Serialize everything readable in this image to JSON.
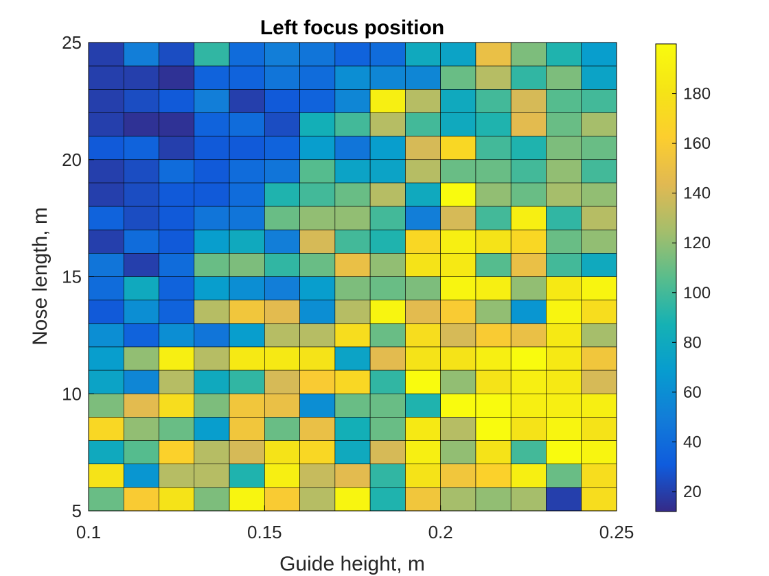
{
  "chart_data": {
    "type": "heatmap",
    "title": "Left focus position",
    "xlabel": "Guide height, m",
    "ylabel": "Nose length, m",
    "xlim": [
      0.1,
      0.25
    ],
    "ylim": [
      5,
      25
    ],
    "x_ticks": [
      "0.1",
      "0.15",
      "0.2",
      "0.25"
    ],
    "y_ticks": [
      "5",
      "10",
      "15",
      "20",
      "25"
    ],
    "colorbar": {
      "range": [
        12,
        200
      ],
      "ticks": [
        "20",
        "40",
        "60",
        "80",
        "100",
        "120",
        "140",
        "160",
        "180"
      ],
      "colormap": "parula"
    },
    "grid": {
      "nx": 15,
      "ny": 20,
      "x_start": 0.1,
      "x_step": 0.01,
      "y_start": 5,
      "y_step": 1
    },
    "values_top_to_bottom": [
      [
        20,
        50,
        25,
        95,
        40,
        50,
        45,
        35,
        40,
        80,
        75,
        150,
        115,
        90,
        70
      ],
      [
        20,
        20,
        15,
        35,
        35,
        45,
        40,
        60,
        55,
        55,
        110,
        130,
        95,
        115,
        75
      ],
      [
        20,
        25,
        30,
        50,
        20,
        30,
        35,
        55,
        190,
        130,
        80,
        100,
        140,
        105,
        100
      ],
      [
        20,
        15,
        15,
        35,
        40,
        25,
        85,
        100,
        130,
        100,
        80,
        90,
        145,
        110,
        125
      ],
      [
        30,
        35,
        20,
        30,
        30,
        35,
        70,
        45,
        70,
        140,
        170,
        100,
        90,
        115,
        110
      ],
      [
        20,
        25,
        40,
        30,
        40,
        45,
        105,
        75,
        75,
        130,
        110,
        110,
        100,
        120,
        100
      ],
      [
        20,
        25,
        30,
        30,
        40,
        90,
        100,
        110,
        130,
        80,
        200,
        120,
        110,
        125,
        120
      ],
      [
        35,
        25,
        30,
        45,
        45,
        110,
        120,
        120,
        100,
        50,
        140,
        100,
        190,
        95,
        130
      ],
      [
        20,
        40,
        30,
        70,
        80,
        50,
        140,
        100,
        90,
        170,
        190,
        180,
        170,
        110,
        120
      ],
      [
        45,
        20,
        40,
        110,
        115,
        95,
        110,
        150,
        120,
        180,
        185,
        105,
        150,
        100,
        80
      ],
      [
        40,
        80,
        35,
        70,
        60,
        50,
        70,
        115,
        110,
        115,
        195,
        190,
        120,
        185,
        195
      ],
      [
        30,
        60,
        35,
        130,
        155,
        145,
        60,
        130,
        195,
        145,
        160,
        120,
        65,
        195,
        175
      ],
      [
        60,
        35,
        60,
        45,
        70,
        130,
        130,
        175,
        110,
        175,
        140,
        160,
        150,
        185,
        125
      ],
      [
        70,
        120,
        190,
        130,
        185,
        185,
        180,
        75,
        145,
        180,
        180,
        190,
        200,
        185,
        155
      ],
      [
        75,
        55,
        130,
        80,
        95,
        140,
        160,
        170,
        95,
        200,
        120,
        180,
        190,
        185,
        140
      ],
      [
        115,
        145,
        175,
        115,
        155,
        150,
        60,
        110,
        110,
        90,
        200,
        200,
        190,
        190,
        190
      ],
      [
        170,
        120,
        110,
        70,
        155,
        110,
        150,
        85,
        110,
        185,
        130,
        200,
        180,
        195,
        180
      ],
      [
        80,
        105,
        165,
        130,
        140,
        180,
        170,
        80,
        140,
        190,
        120,
        180,
        100,
        200,
        195
      ],
      [
        180,
        65,
        130,
        130,
        90,
        190,
        135,
        145,
        95,
        180,
        155,
        165,
        190,
        110,
        175
      ],
      [
        110,
        160,
        180,
        115,
        195,
        160,
        130,
        195,
        90,
        155,
        125,
        120,
        125,
        20,
        175
      ]
    ]
  }
}
